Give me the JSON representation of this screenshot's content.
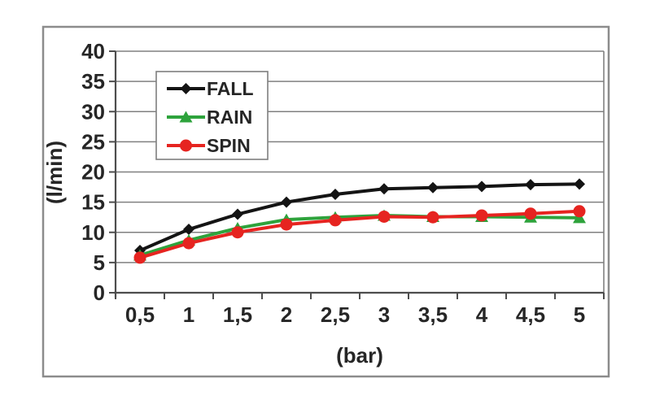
{
  "chart_data": {
    "type": "line",
    "title": "",
    "xlabel": "(bar)",
    "ylabel": "(l/min)",
    "x": [
      0.5,
      1,
      1.5,
      2,
      2.5,
      3,
      3.5,
      4,
      4.5,
      5
    ],
    "x_tick_labels": [
      "0,5",
      "1",
      "1,5",
      "2",
      "2,5",
      "3",
      "3,5",
      "4",
      "4,5",
      "5"
    ],
    "ylim": [
      0,
      40
    ],
    "y_ticks": [
      0,
      5,
      10,
      15,
      20,
      25,
      30,
      35,
      40
    ],
    "y_tick_labels": [
      "0",
      "5",
      "10",
      "15",
      "20",
      "25",
      "30",
      "35",
      "40"
    ],
    "grid": true,
    "legend_position": "upper-left-inside",
    "series": [
      {
        "name": "FALL",
        "color": "#141414",
        "marker": "diamond",
        "values": [
          7,
          10.5,
          13,
          15,
          16.3,
          17.2,
          17.4,
          17.6,
          17.9,
          18
        ]
      },
      {
        "name": "RAIN",
        "color": "#2ea33c",
        "marker": "triangle",
        "values": [
          6.2,
          8.7,
          10.7,
          12.1,
          12.5,
          12.8,
          12.6,
          12.6,
          12.5,
          12.4
        ]
      },
      {
        "name": "SPIN",
        "color": "#e62420",
        "marker": "circle",
        "values": [
          5.8,
          8.2,
          10,
          11.3,
          12,
          12.6,
          12.5,
          12.8,
          13.1,
          13.5
        ]
      }
    ],
    "colors": {
      "grid": "#808080",
      "axis": "#4d4d4d",
      "figure_border": "#8c8c8c",
      "legend_border": "#7f7f7f",
      "text": "#262626",
      "background": "#ffffff"
    }
  }
}
